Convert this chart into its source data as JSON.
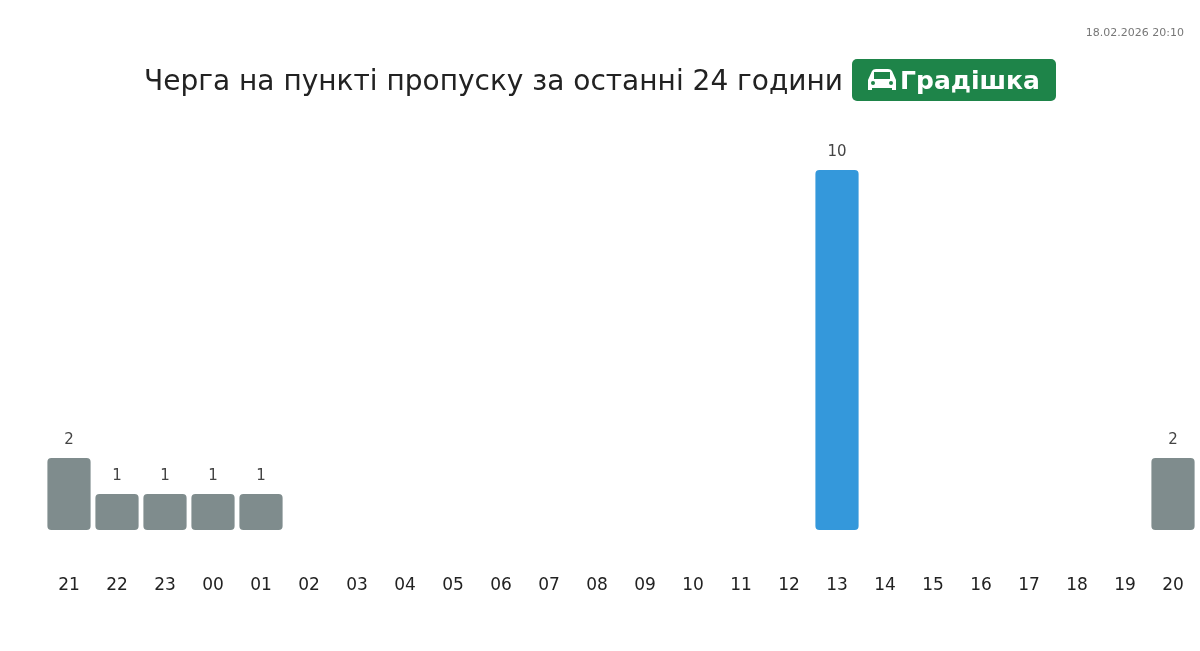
{
  "chart_data": {
    "type": "bar",
    "title": "Черга на пункті пропуску за останні 24 години",
    "subtitle": "Градішка",
    "categories": [
      "21",
      "22",
      "23",
      "00",
      "01",
      "02",
      "03",
      "04",
      "05",
      "06",
      "07",
      "08",
      "09",
      "10",
      "11",
      "12",
      "13",
      "14",
      "15",
      "16",
      "17",
      "18",
      "19",
      "20"
    ],
    "values": [
      2,
      1,
      1,
      1,
      1,
      0,
      0,
      0,
      0,
      0,
      0,
      0,
      0,
      0,
      0,
      0,
      10,
      0,
      0,
      0,
      0,
      0,
      0,
      2
    ],
    "colors": [
      "#7f8c8d",
      "#7f8c8d",
      "#7f8c8d",
      "#7f8c8d",
      "#7f8c8d",
      null,
      null,
      null,
      null,
      null,
      null,
      null,
      null,
      null,
      null,
      null,
      "#3498db",
      null,
      null,
      null,
      null,
      null,
      null,
      "#7f8c8d"
    ],
    "value_labels": [
      "2",
      "1",
      "1",
      "1",
      "1",
      null,
      null,
      null,
      null,
      null,
      null,
      null,
      null,
      null,
      null,
      null,
      "10",
      null,
      null,
      null,
      null,
      null,
      null,
      "2"
    ],
    "annotations": [
      "18.02.2026 20:10"
    ]
  }
}
